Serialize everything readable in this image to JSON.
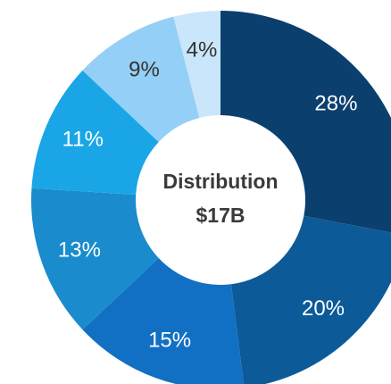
{
  "chart_data": {
    "type": "donut",
    "center_label": [
      "Distribution",
      "$17B"
    ],
    "values": [
      28,
      20,
      15,
      13,
      11,
      9,
      4
    ],
    "value_labels": [
      "28%",
      "20%",
      "15%",
      "13%",
      "11%",
      "9%",
      "4%"
    ],
    "colors": [
      "#0b3f6e",
      "#0c5a98",
      "#1170c3",
      "#1a8ccd",
      "#1aa6e6",
      "#94cff7",
      "#c9e6fb"
    ]
  }
}
